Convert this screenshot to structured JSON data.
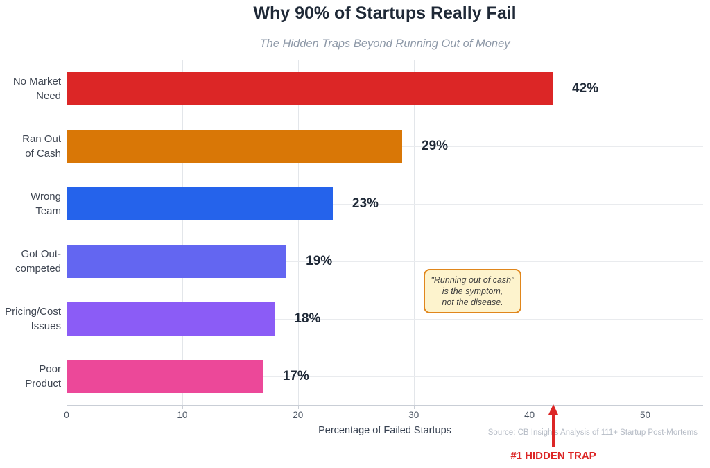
{
  "chart_data": {
    "type": "bar",
    "orientation": "horizontal",
    "title": "Why 90% of Startups Really Fail",
    "subtitle": "The Hidden Traps Beyond Running Out of Money",
    "xlabel": "Percentage of Failed Startups",
    "source": "Source: CB Insights Analysis of 111+ Startup Post-Mortems",
    "categories": [
      "No Market\nNeed",
      "Ran Out\nof Cash",
      "Wrong\nTeam",
      "Got Out-\ncompeted",
      "Pricing/Cost\nIssues",
      "Poor\nProduct"
    ],
    "values": [
      42,
      29,
      23,
      19,
      18,
      17
    ],
    "value_labels": [
      "42%",
      "29%",
      "23%",
      "19%",
      "18%",
      "17%"
    ],
    "bar_colors": [
      "#dc2626",
      "#d97706",
      "#2563eb",
      "#6366f1",
      "#8b5cf6",
      "#ec4899"
    ],
    "xlim": [
      0,
      55
    ],
    "xticks": [
      0,
      10,
      20,
      30,
      40,
      50
    ],
    "grid": true,
    "legend": "none",
    "annotation": {
      "text": "\"Running out of cash\"\nis the symptom,\nnot the disease.",
      "background": "#fdf3cd",
      "border_color": "#e0861c"
    },
    "callout": {
      "label": "#1 HIDDEN TRAP",
      "points_to_value": 42,
      "color": "#dc2626"
    }
  }
}
